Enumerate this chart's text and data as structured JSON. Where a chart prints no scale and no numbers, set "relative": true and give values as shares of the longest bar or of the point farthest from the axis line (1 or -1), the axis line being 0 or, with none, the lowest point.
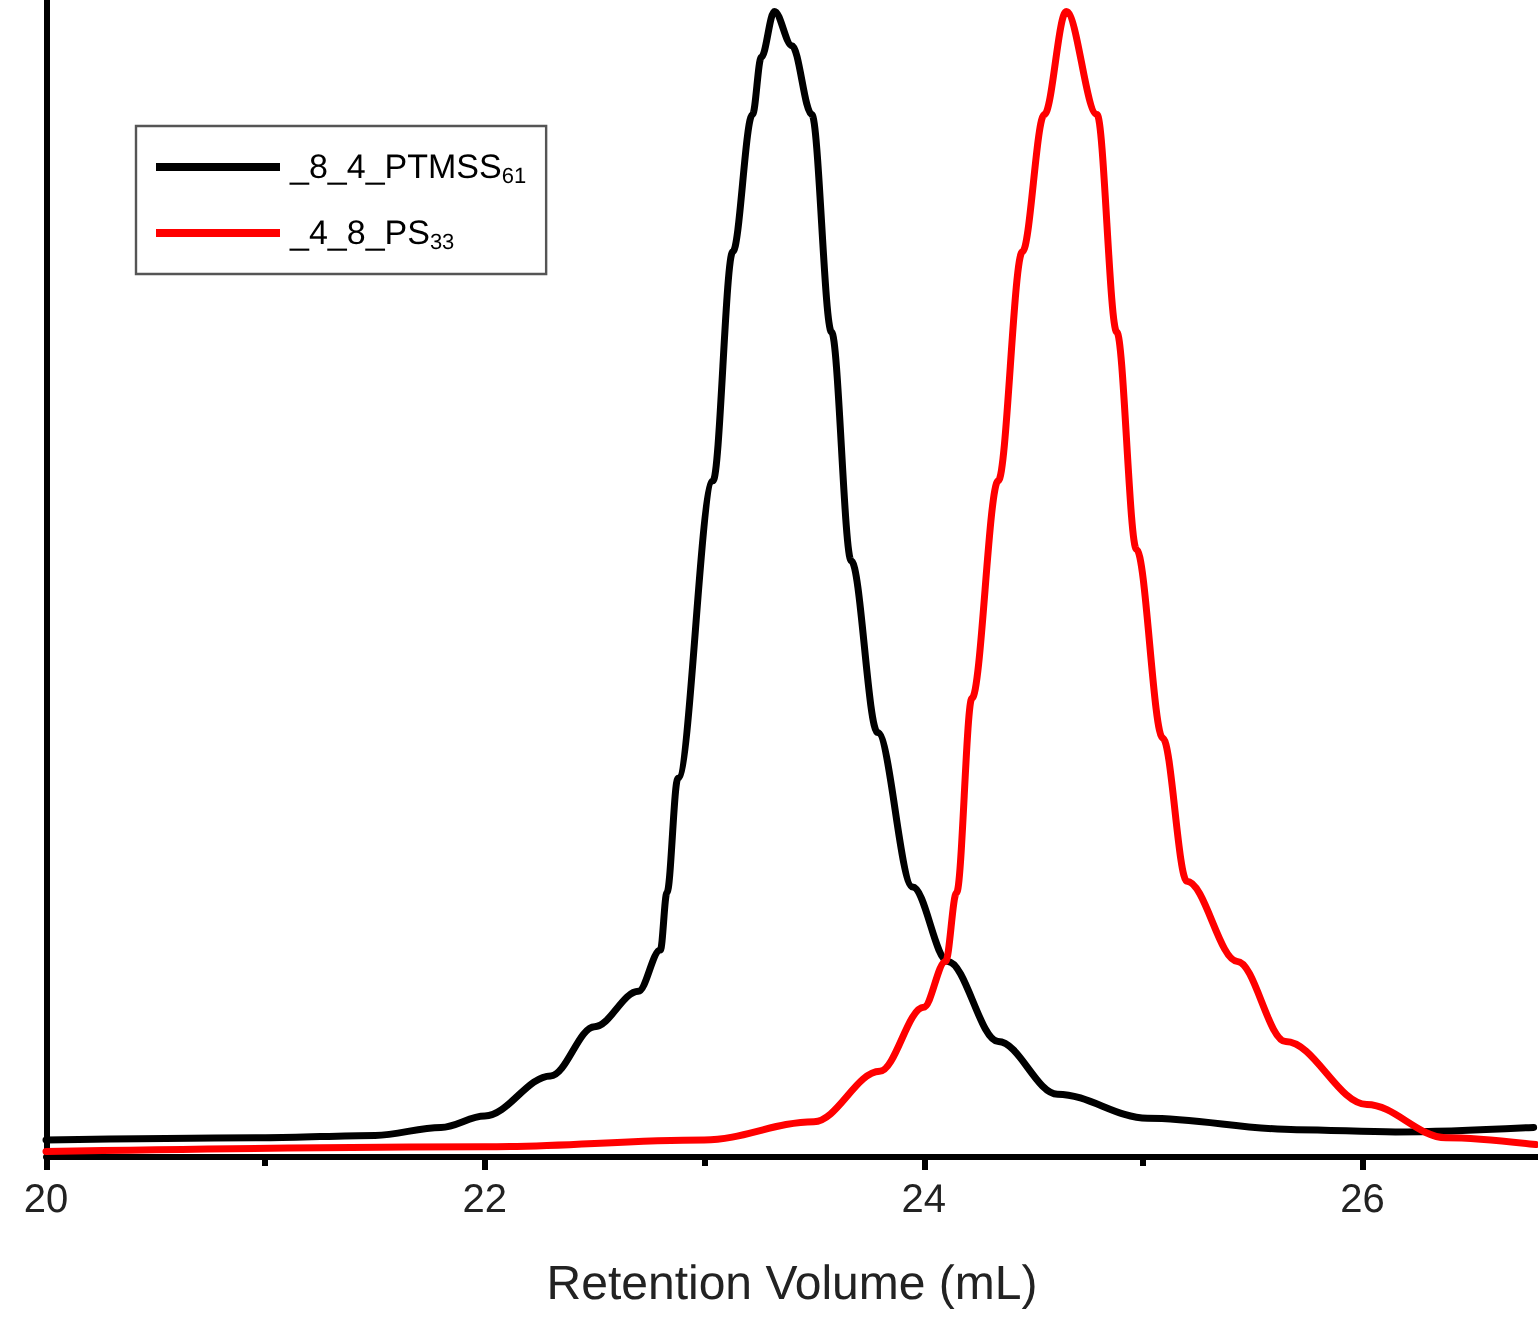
{
  "chart_data": {
    "type": "line",
    "xlabel": "Retention Volume (mL)",
    "relative": true,
    "xlim": [
      20,
      26.8
    ],
    "xticks": [
      20,
      22,
      24,
      26
    ],
    "legend": "top left",
    "marker": "none",
    "line_style": "solid",
    "grid": false,
    "tick_labels": "x",
    "series": [
      {
        "name": "_8_4_PTMSS$_{61}$",
        "color": "#000000",
        "x": [
          20,
          21,
          21.5,
          21.8,
          22,
          22.3,
          22.5,
          22.7,
          22.8,
          22.83,
          22.88,
          23.04,
          23.13,
          23.22,
          23.26,
          23.32,
          23.4,
          23.49,
          23.58,
          23.67,
          23.79,
          23.95,
          24.11,
          24.34,
          24.61,
          25.02,
          25.7,
          26.15,
          26.78
        ],
        "values": [
          0.014,
          0.016,
          0.018,
          0.025,
          0.035,
          0.07,
          0.113,
          0.144,
          0.18,
          0.23,
          0.33,
          0.59,
          0.79,
          0.91,
          0.96,
          1.0,
          0.97,
          0.91,
          0.72,
          0.52,
          0.37,
          0.235,
          0.17,
          0.1,
          0.054,
          0.033,
          0.023,
          0.021,
          0.025
        ]
      },
      {
        "name": "_4_8_PS$_{33}$",
        "color": "#ff0000",
        "x": [
          20,
          22,
          23,
          23.5,
          23.8,
          24.0,
          24.1,
          24.15,
          24.22,
          24.34,
          24.45,
          24.55,
          24.65,
          24.79,
          24.88,
          24.97,
          25.09,
          25.2,
          25.43,
          25.65,
          26.02,
          26.38,
          26.79
        ],
        "values": [
          0.004,
          0.008,
          0.014,
          0.03,
          0.074,
          0.13,
          0.17,
          0.23,
          0.4,
          0.59,
          0.79,
          0.91,
          1.0,
          0.91,
          0.72,
          0.53,
          0.365,
          0.24,
          0.17,
          0.1,
          0.045,
          0.016,
          0.01
        ]
      }
    ]
  }
}
